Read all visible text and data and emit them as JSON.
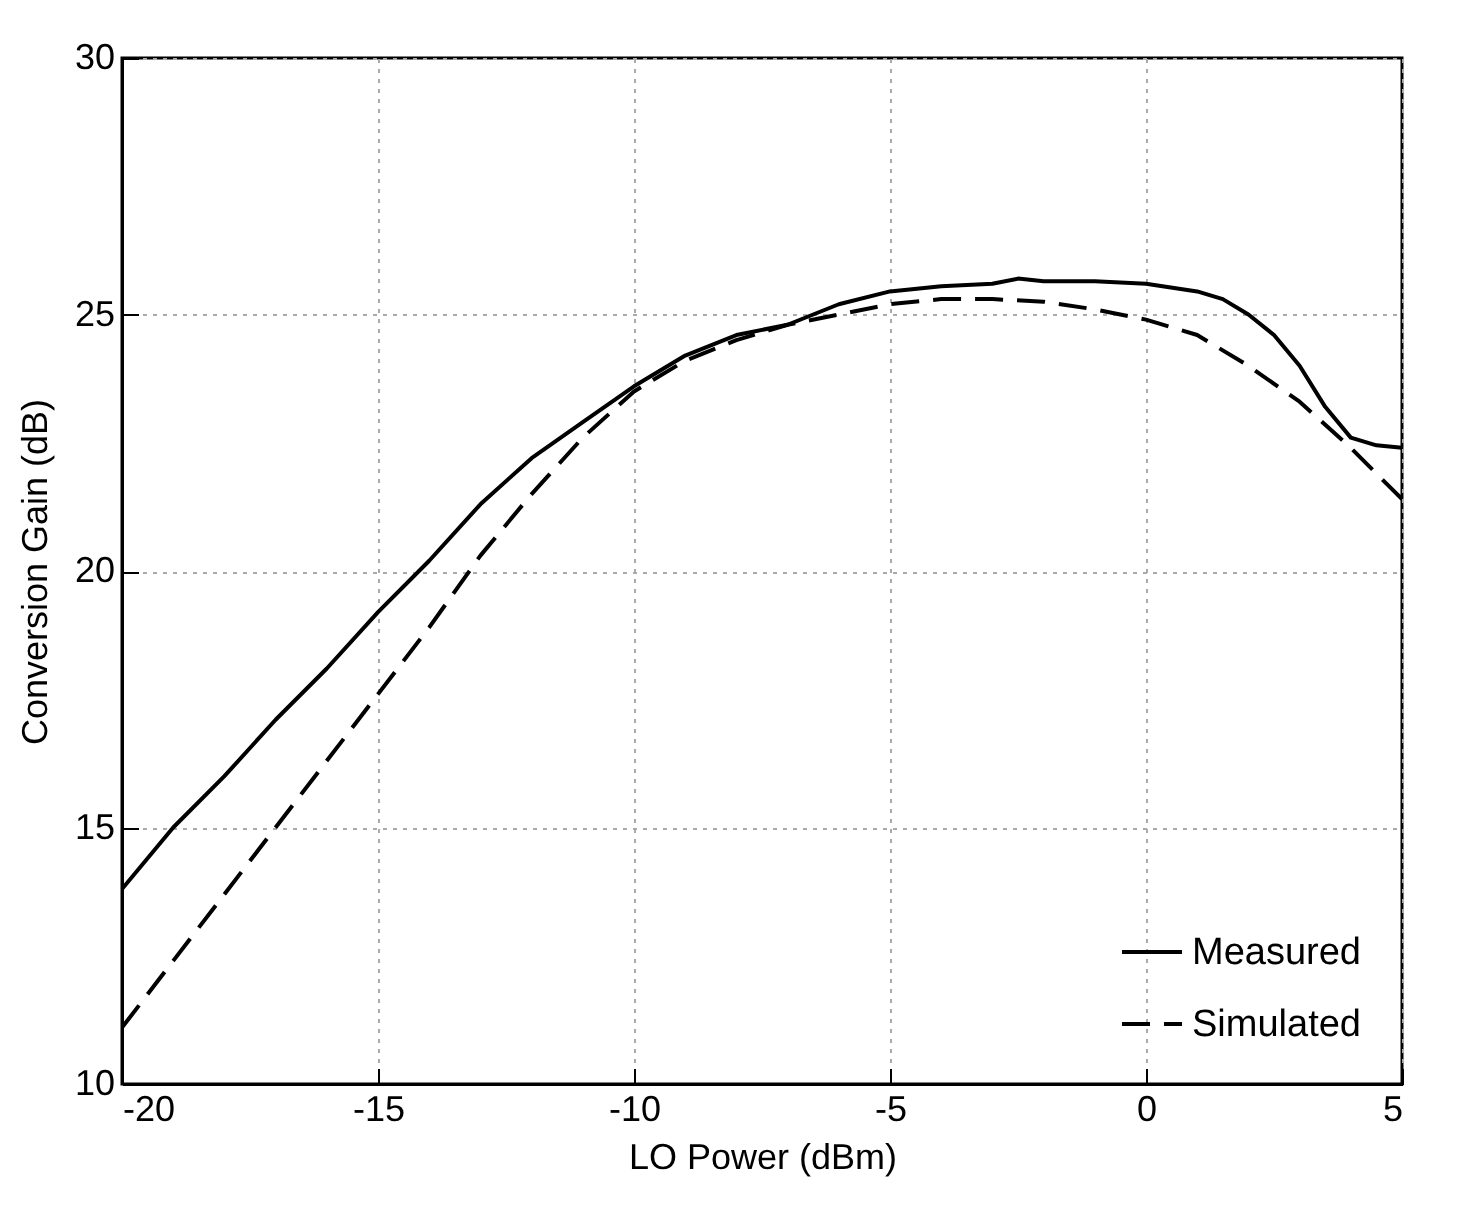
{
  "chart_data": {
    "type": "line",
    "xlabel": "LO Power (dBm)",
    "ylabel": "Conversion Gain (dB)",
    "xlim": [
      -20,
      5
    ],
    "xticks": [
      -20,
      -15,
      -10,
      -5,
      0,
      5
    ],
    "ylim": [
      10,
      30
    ],
    "yticks": [
      10,
      15,
      20,
      25,
      30
    ],
    "grid": true,
    "legend": "bottom right",
    "series": [
      {
        "name": "Measured",
        "color": "#000000",
        "line_style": "solid",
        "x": [
          -20,
          -19,
          -18,
          -17,
          -16,
          -15,
          -14,
          -13,
          -12,
          -11,
          -10,
          -9,
          -8,
          -7,
          -6,
          -5,
          -4,
          -3,
          -2.5,
          -2,
          -1,
          0,
          1,
          1.5,
          2,
          2.5,
          3,
          3.5,
          4,
          4.5,
          5
        ],
        "values": [
          13.8,
          15.0,
          16.0,
          17.1,
          18.1,
          19.2,
          20.2,
          21.3,
          22.2,
          22.9,
          23.6,
          24.2,
          24.6,
          24.8,
          25.2,
          25.45,
          25.55,
          25.6,
          25.7,
          25.65,
          25.65,
          25.6,
          25.45,
          25.3,
          25.0,
          24.6,
          24.0,
          23.2,
          22.6,
          22.45,
          22.4
        ]
      },
      {
        "name": "Simulated",
        "color": "#000000",
        "line_style": "dashed",
        "x": [
          -20,
          -19,
          -18,
          -17,
          -16,
          -15,
          -14,
          -13,
          -12,
          -11,
          -10,
          -9,
          -8,
          -7,
          -6,
          -5,
          -4,
          -3,
          -2,
          -1,
          0,
          1,
          2,
          3,
          4,
          5
        ],
        "values": [
          11.1,
          12.4,
          13.7,
          15.0,
          16.3,
          17.6,
          18.9,
          20.3,
          21.5,
          22.6,
          23.5,
          24.1,
          24.5,
          24.8,
          25.0,
          25.2,
          25.3,
          25.3,
          25.25,
          25.1,
          24.9,
          24.6,
          24.0,
          23.3,
          22.4,
          21.4
        ]
      }
    ]
  }
}
